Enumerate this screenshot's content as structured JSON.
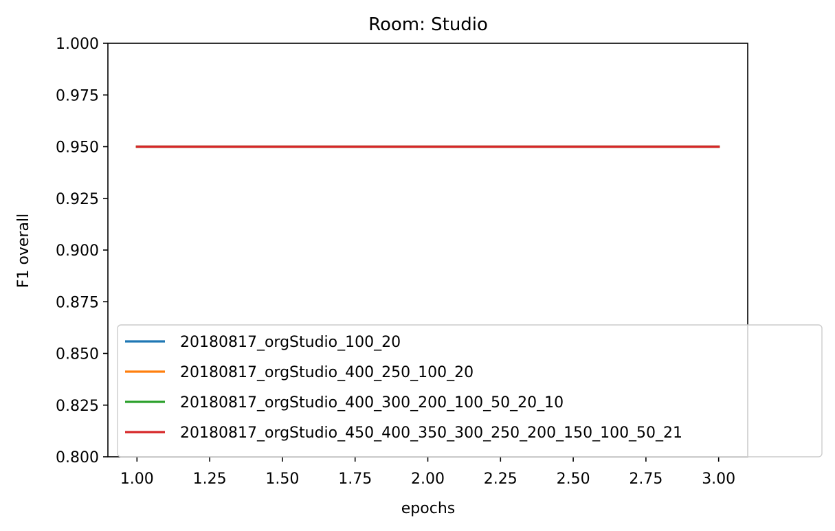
{
  "chart_data": {
    "type": "line",
    "title": "Room: Studio",
    "xlabel": "epochs",
    "ylabel": "F1 overall",
    "xlim": [
      0.9,
      3.1
    ],
    "ylim": [
      0.8,
      1.0
    ],
    "x_ticks": [
      "1.00",
      "1.25",
      "1.50",
      "1.75",
      "2.00",
      "2.25",
      "2.50",
      "2.75",
      "3.00"
    ],
    "y_ticks": [
      "0.800",
      "0.825",
      "0.850",
      "0.875",
      "0.900",
      "0.925",
      "0.950",
      "0.975",
      "1.000"
    ],
    "grid": false,
    "legend_position": "bottom-left",
    "x": [
      1,
      2,
      3
    ],
    "series": [
      {
        "name": "20180817_orgStudio_100_20",
        "color": "#1f77b4",
        "values": [
          0.95,
          0.95,
          0.95
        ]
      },
      {
        "name": "20180817_orgStudio_400_250_100_20",
        "color": "#ff7f0e",
        "values": [
          0.95,
          0.95,
          0.95
        ]
      },
      {
        "name": "20180817_orgStudio_400_300_200_100_50_20_10",
        "color": "#2ca02c",
        "values": [
          0.95,
          0.95,
          0.95
        ]
      },
      {
        "name": "20180817_orgStudio_450_400_350_300_250_200_150_100_50_21",
        "color": "#d62728",
        "values": [
          0.95,
          0.95,
          0.95
        ]
      }
    ]
  }
}
